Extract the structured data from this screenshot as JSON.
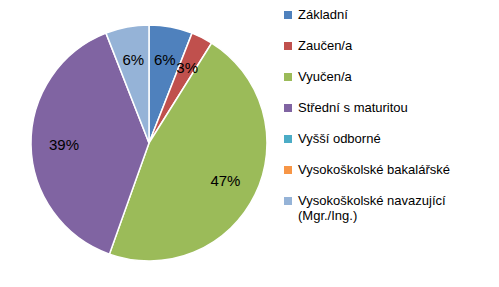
{
  "chart_data": {
    "type": "pie",
    "categories": [
      "Základní",
      "Zaučen/a",
      "Vyučen/a",
      "Střední s maturitou",
      "Vyšší odborné",
      "Vysokoškolské bakalářské",
      "Vysokoškolské navazující (Mgr./Ing.)"
    ],
    "values": [
      6,
      3,
      47,
      39,
      0,
      0,
      6
    ],
    "value_labels": [
      "6%",
      "3%",
      "47%",
      "39%",
      null,
      null,
      "6%"
    ],
    "colors": [
      "#4f81bd",
      "#c0504d",
      "#9bbb59",
      "#8064a2",
      "#4bacc6",
      "#f79646",
      "#95b3d7"
    ],
    "data_labels": true,
    "legend": "right"
  }
}
